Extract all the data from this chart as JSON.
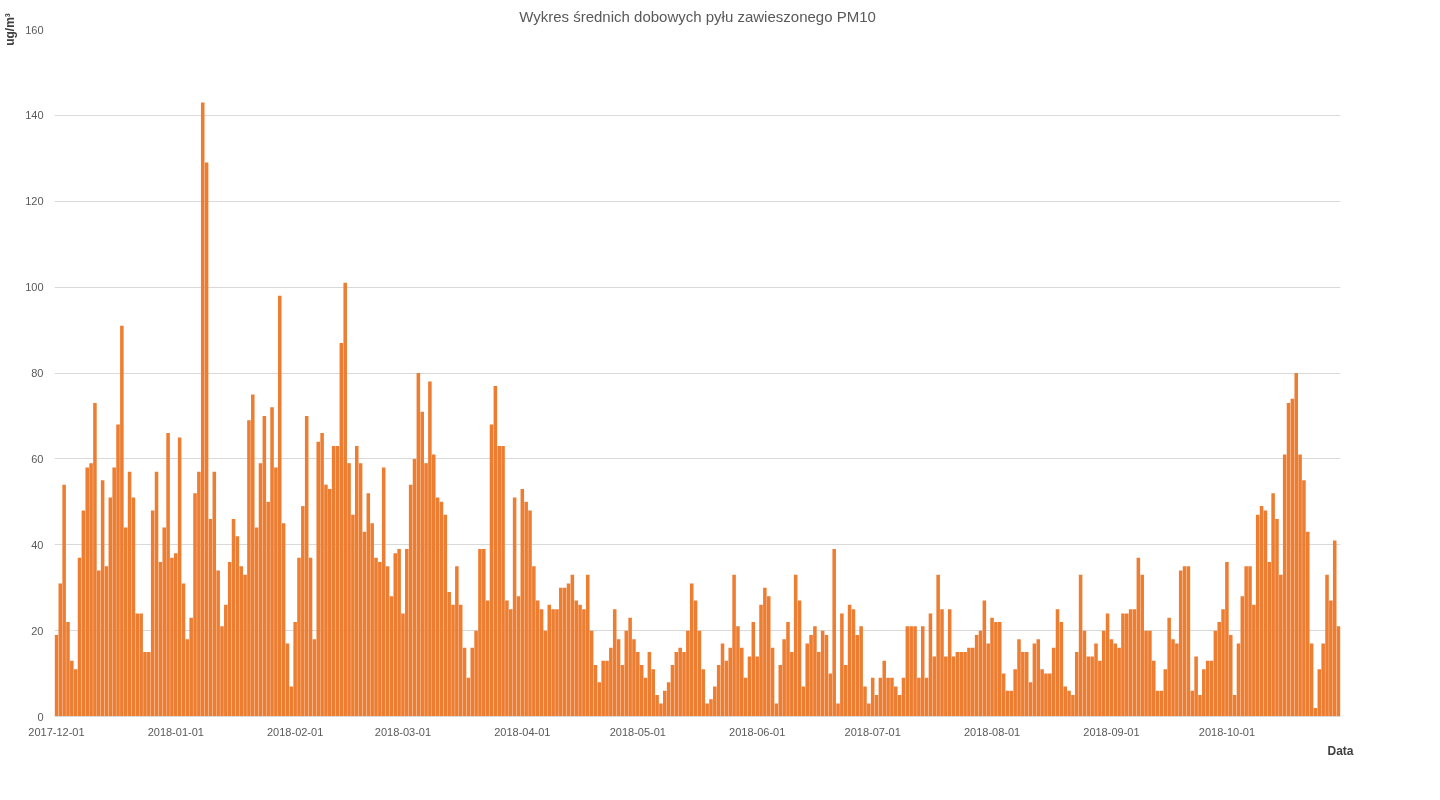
{
  "chart_data": {
    "type": "bar",
    "title": "Wykres średnich dobowych pyłu zawieszonego PM10",
    "xlabel": "Data",
    "ylabel": "ug/m³",
    "x": [
      "2017-12-01",
      "2017-12-02",
      "2017-12-03",
      "2017-12-04",
      "2017-12-05",
      "2017-12-06",
      "2017-12-07",
      "2017-12-08",
      "2017-12-09",
      "2017-12-10",
      "2017-12-11",
      "2017-12-12",
      "2017-12-13",
      "2017-12-14",
      "2017-12-15",
      "2017-12-16",
      "2017-12-17",
      "2017-12-18",
      "2017-12-19",
      "2017-12-20",
      "2017-12-21",
      "2017-12-22",
      "2017-12-23",
      "2017-12-24",
      "2017-12-25",
      "2017-12-26",
      "2017-12-27",
      "2017-12-28",
      "2017-12-29",
      "2017-12-30",
      "2017-12-31",
      "2018-01-01",
      "2018-01-02",
      "2018-01-03",
      "2018-01-04",
      "2018-01-05",
      "2018-01-06",
      "2018-01-07",
      "2018-01-08",
      "2018-01-09",
      "2018-01-10",
      "2018-01-11",
      "2018-01-12",
      "2018-01-13",
      "2018-01-14",
      "2018-01-15",
      "2018-01-16",
      "2018-01-17",
      "2018-01-18",
      "2018-01-19",
      "2018-01-20",
      "2018-01-21",
      "2018-01-22",
      "2018-01-23",
      "2018-01-24",
      "2018-01-25",
      "2018-01-26",
      "2018-01-27",
      "2018-01-28",
      "2018-01-29",
      "2018-01-30",
      "2018-01-31",
      "2018-02-01",
      "2018-02-02",
      "2018-02-03",
      "2018-02-04",
      "2018-02-05",
      "2018-02-06",
      "2018-02-07",
      "2018-02-08",
      "2018-02-09",
      "2018-02-10",
      "2018-02-11",
      "2018-02-12",
      "2018-02-13",
      "2018-02-14",
      "2018-02-15",
      "2018-02-16",
      "2018-02-17",
      "2018-02-18",
      "2018-02-19",
      "2018-02-20",
      "2018-02-21",
      "2018-02-22",
      "2018-02-23",
      "2018-02-24",
      "2018-02-25",
      "2018-02-26",
      "2018-02-27",
      "2018-02-28",
      "2018-03-01",
      "2018-03-02",
      "2018-03-03",
      "2018-03-04",
      "2018-03-05",
      "2018-03-06",
      "2018-03-07",
      "2018-03-08",
      "2018-03-09",
      "2018-03-10",
      "2018-03-11",
      "2018-03-12",
      "2018-03-13",
      "2018-03-14",
      "2018-03-15",
      "2018-03-16",
      "2018-03-17",
      "2018-03-18",
      "2018-03-19",
      "2018-03-20",
      "2018-03-21",
      "2018-03-22",
      "2018-03-23",
      "2018-03-24",
      "2018-03-25",
      "2018-03-26",
      "2018-03-27",
      "2018-03-28",
      "2018-03-29",
      "2018-03-30",
      "2018-03-31",
      "2018-04-01",
      "2018-04-02",
      "2018-04-03",
      "2018-04-04",
      "2018-04-05",
      "2018-04-06",
      "2018-04-07",
      "2018-04-08",
      "2018-04-09",
      "2018-04-10",
      "2018-04-11",
      "2018-04-12",
      "2018-04-13",
      "2018-04-14",
      "2018-04-15",
      "2018-04-16",
      "2018-04-17",
      "2018-04-18",
      "2018-04-19",
      "2018-04-20",
      "2018-04-21",
      "2018-04-22",
      "2018-04-23",
      "2018-04-24",
      "2018-04-25",
      "2018-04-26",
      "2018-04-27",
      "2018-04-28",
      "2018-04-29",
      "2018-04-30",
      "2018-05-01",
      "2018-05-02",
      "2018-05-03",
      "2018-05-04",
      "2018-05-05",
      "2018-05-06",
      "2018-05-07",
      "2018-05-08",
      "2018-05-09",
      "2018-05-10",
      "2018-05-11",
      "2018-05-12",
      "2018-05-13",
      "2018-05-14",
      "2018-05-15",
      "2018-05-16",
      "2018-05-17",
      "2018-05-18",
      "2018-05-19",
      "2018-05-20",
      "2018-05-21",
      "2018-05-22",
      "2018-05-23",
      "2018-05-24",
      "2018-05-25",
      "2018-05-26",
      "2018-05-27",
      "2018-05-28",
      "2018-05-29",
      "2018-05-30",
      "2018-05-31",
      "2018-06-01",
      "2018-06-02",
      "2018-06-03",
      "2018-06-04",
      "2018-06-05",
      "2018-06-06",
      "2018-06-07",
      "2018-06-08",
      "2018-06-09",
      "2018-06-10",
      "2018-06-11",
      "2018-06-12",
      "2018-06-13",
      "2018-06-14",
      "2018-06-15",
      "2018-06-16",
      "2018-06-17",
      "2018-06-18",
      "2018-06-19",
      "2018-06-20",
      "2018-06-21",
      "2018-06-22",
      "2018-06-23",
      "2018-06-24",
      "2018-06-25",
      "2018-06-26",
      "2018-06-27",
      "2018-06-28",
      "2018-06-29",
      "2018-06-30",
      "2018-07-01",
      "2018-07-02",
      "2018-07-03",
      "2018-07-04",
      "2018-07-05",
      "2018-07-06",
      "2018-07-07",
      "2018-07-08",
      "2018-07-09",
      "2018-07-10",
      "2018-07-11",
      "2018-07-12",
      "2018-07-13",
      "2018-07-14",
      "2018-07-15",
      "2018-07-16",
      "2018-07-17",
      "2018-07-18",
      "2018-07-19",
      "2018-07-20",
      "2018-07-21",
      "2018-07-22",
      "2018-07-23",
      "2018-07-24",
      "2018-07-25",
      "2018-07-26",
      "2018-07-27",
      "2018-07-28",
      "2018-07-29",
      "2018-07-30",
      "2018-07-31",
      "2018-08-01",
      "2018-08-02",
      "2018-08-03",
      "2018-08-04",
      "2018-08-05",
      "2018-08-06",
      "2018-08-07",
      "2018-08-08",
      "2018-08-09",
      "2018-08-10",
      "2018-08-11",
      "2018-08-12",
      "2018-08-13",
      "2018-08-14",
      "2018-08-15",
      "2018-08-16",
      "2018-08-17",
      "2018-08-18",
      "2018-08-19",
      "2018-08-20",
      "2018-08-21",
      "2018-08-22",
      "2018-08-23",
      "2018-08-24",
      "2018-08-25",
      "2018-08-26",
      "2018-08-27",
      "2018-08-28",
      "2018-08-29",
      "2018-08-30",
      "2018-08-31",
      "2018-09-01",
      "2018-09-02",
      "2018-09-03",
      "2018-09-04",
      "2018-09-05",
      "2018-09-06",
      "2018-09-07",
      "2018-09-08",
      "2018-09-09",
      "2018-09-10",
      "2018-09-11",
      "2018-09-12",
      "2018-09-13",
      "2018-09-14",
      "2018-09-15",
      "2018-09-16",
      "2018-09-17",
      "2018-09-18",
      "2018-09-19",
      "2018-09-20",
      "2018-09-21",
      "2018-09-22",
      "2018-09-23",
      "2018-09-24",
      "2018-09-25",
      "2018-09-26",
      "2018-09-27",
      "2018-09-28",
      "2018-09-29",
      "2018-09-30",
      "2018-10-01",
      "2018-10-02",
      "2018-10-03",
      "2018-10-04",
      "2018-10-05",
      "2018-10-06",
      "2018-10-07",
      "2018-10-08",
      "2018-10-09",
      "2018-10-10",
      "2018-10-11",
      "2018-10-12",
      "2018-10-13",
      "2018-10-14",
      "2018-10-15",
      "2018-10-16",
      "2018-10-17",
      "2018-10-18",
      "2018-10-19",
      "2018-10-20",
      "2018-10-21",
      "2018-10-22",
      "2018-10-23",
      "2018-10-24",
      "2018-10-25",
      "2018-10-26",
      "2018-10-27",
      "2018-10-28",
      "2018-10-29",
      "2018-10-30"
    ],
    "series": [
      {
        "color": "#ed7d31",
        "values": [
          19,
          31,
          54,
          22,
          13,
          11,
          37,
          48,
          58,
          59,
          73,
          34,
          55,
          35,
          51,
          58,
          68,
          91,
          44,
          57,
          51,
          24,
          24,
          15,
          15,
          48,
          57,
          36,
          44,
          66,
          37,
          38,
          65,
          31,
          18,
          23,
          52,
          57,
          143,
          129,
          46,
          57,
          34,
          21,
          26,
          36,
          46,
          42,
          35,
          33,
          69,
          75,
          44,
          59,
          70,
          50,
          72,
          58,
          98,
          45,
          17,
          7,
          22,
          37,
          49,
          70,
          37,
          18,
          64,
          66,
          54,
          53,
          63,
          63,
          87,
          101,
          59,
          47,
          63,
          59,
          43,
          52,
          45,
          37,
          36,
          58,
          35,
          28,
          38,
          39,
          24,
          39,
          54,
          60,
          80,
          71,
          59,
          78,
          61,
          51,
          50,
          47,
          29,
          26,
          35,
          26,
          16,
          9,
          16,
          20,
          39,
          39,
          27,
          68,
          77,
          63,
          63,
          27,
          25,
          51,
          28,
          53,
          50,
          48,
          35,
          27,
          25,
          20,
          26,
          25,
          25,
          30,
          30,
          31,
          33,
          27,
          26,
          25,
          33,
          20,
          12,
          8,
          13,
          13,
          16,
          25,
          18,
          12,
          20,
          23,
          18,
          15,
          12,
          9,
          15,
          11,
          5,
          3,
          6,
          8,
          12,
          15,
          16,
          15,
          20,
          31,
          27,
          20,
          11,
          3,
          4,
          7,
          12,
          17,
          13,
          16,
          33,
          21,
          16,
          9,
          14,
          22,
          14,
          26,
          30,
          28,
          16,
          3,
          12,
          18,
          22,
          15,
          33,
          27,
          7,
          17,
          19,
          21,
          15,
          20,
          19,
          10,
          39,
          3,
          24,
          12,
          26,
          25,
          19,
          21,
          7,
          3,
          9,
          5,
          9,
          13,
          9,
          9,
          7,
          5,
          9,
          21,
          21,
          21,
          9,
          21,
          9,
          24,
          14,
          33,
          25,
          14,
          25,
          14,
          15,
          15,
          15,
          16,
          16,
          19,
          20,
          27,
          17,
          23,
          22,
          22,
          10,
          6,
          6,
          11,
          18,
          15,
          15,
          8,
          17,
          18,
          11,
          10,
          10,
          16,
          25,
          22,
          7,
          6,
          5,
          15,
          33,
          20,
          14,
          14,
          17,
          13,
          20,
          24,
          18,
          17,
          16,
          24,
          24,
          25,
          25,
          37,
          33,
          20,
          20,
          13,
          6,
          6,
          11,
          23,
          18,
          17,
          34,
          35,
          35,
          6,
          14,
          5,
          11,
          13,
          13,
          20,
          22,
          25,
          36,
          19,
          5,
          17,
          28,
          35,
          35,
          26,
          47,
          49,
          48,
          36,
          52,
          46,
          33,
          61,
          73,
          74,
          80,
          61,
          55,
          43,
          17,
          2,
          11,
          17,
          33,
          27,
          41,
          21
        ]
      }
    ],
    "xlim": [
      "2017-11-30T12:00",
      "2018-10-30T12:00"
    ],
    "xticks": [
      "2017-12-01",
      "2018-01-01",
      "2018-02-01",
      "2018-03-01",
      "2018-04-01",
      "2018-05-01",
      "2018-06-01",
      "2018-07-01",
      "2018-08-01",
      "2018-09-01",
      "2018-10-01"
    ],
    "ylim": [
      0,
      160
    ],
    "yticks": [
      0,
      20,
      40,
      60,
      80,
      100,
      120,
      140,
      160
    ],
    "grid": "y"
  }
}
